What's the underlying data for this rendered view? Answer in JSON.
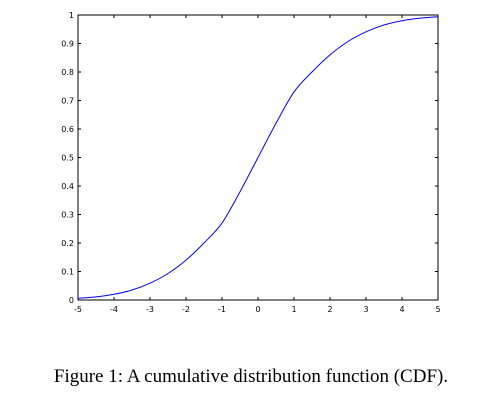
{
  "chart_data": {
    "type": "line",
    "title": "",
    "xlabel": "",
    "ylabel": "",
    "xlim": [
      -5,
      5
    ],
    "ylim": [
      0,
      1
    ],
    "x_ticks": [
      -5,
      -4,
      -3,
      -2,
      -1,
      0,
      1,
      2,
      3,
      4,
      5
    ],
    "y_ticks": [
      0,
      0.1,
      0.2,
      0.3,
      0.4,
      0.5,
      0.6,
      0.7,
      0.8,
      0.9,
      1
    ],
    "x_tick_labels": [
      "-5",
      "-4",
      "-3",
      "-2",
      "-1",
      "0",
      "1",
      "2",
      "3",
      "4",
      "5"
    ],
    "y_tick_labels": [
      "0",
      "0.1",
      "0.2",
      "0.3",
      "0.4",
      "0.5",
      "0.6",
      "0.7",
      "0.8",
      "0.9",
      "1"
    ],
    "grid": false,
    "legend": "none",
    "series": [
      {
        "color": "#0000ff",
        "x": [
          -5,
          -4.5,
          -4,
          -3.5,
          -3,
          -2.5,
          -2,
          -1.5,
          -1,
          -0.5,
          0,
          0.5,
          1,
          1.5,
          2,
          2.5,
          3,
          3.5,
          4,
          4.5,
          5
        ],
        "y": [
          0.006,
          0.011,
          0.02,
          0.035,
          0.059,
          0.093,
          0.14,
          0.2,
          0.27,
          0.38,
          0.5,
          0.62,
          0.73,
          0.8,
          0.86,
          0.907,
          0.941,
          0.965,
          0.98,
          0.989,
          0.994
        ]
      }
    ]
  },
  "caption": "Figure 1: A cumulative distribution function (CDF).",
  "colors": {
    "line": "#0000ff",
    "axes": "#000000",
    "background": "#ffffff"
  }
}
